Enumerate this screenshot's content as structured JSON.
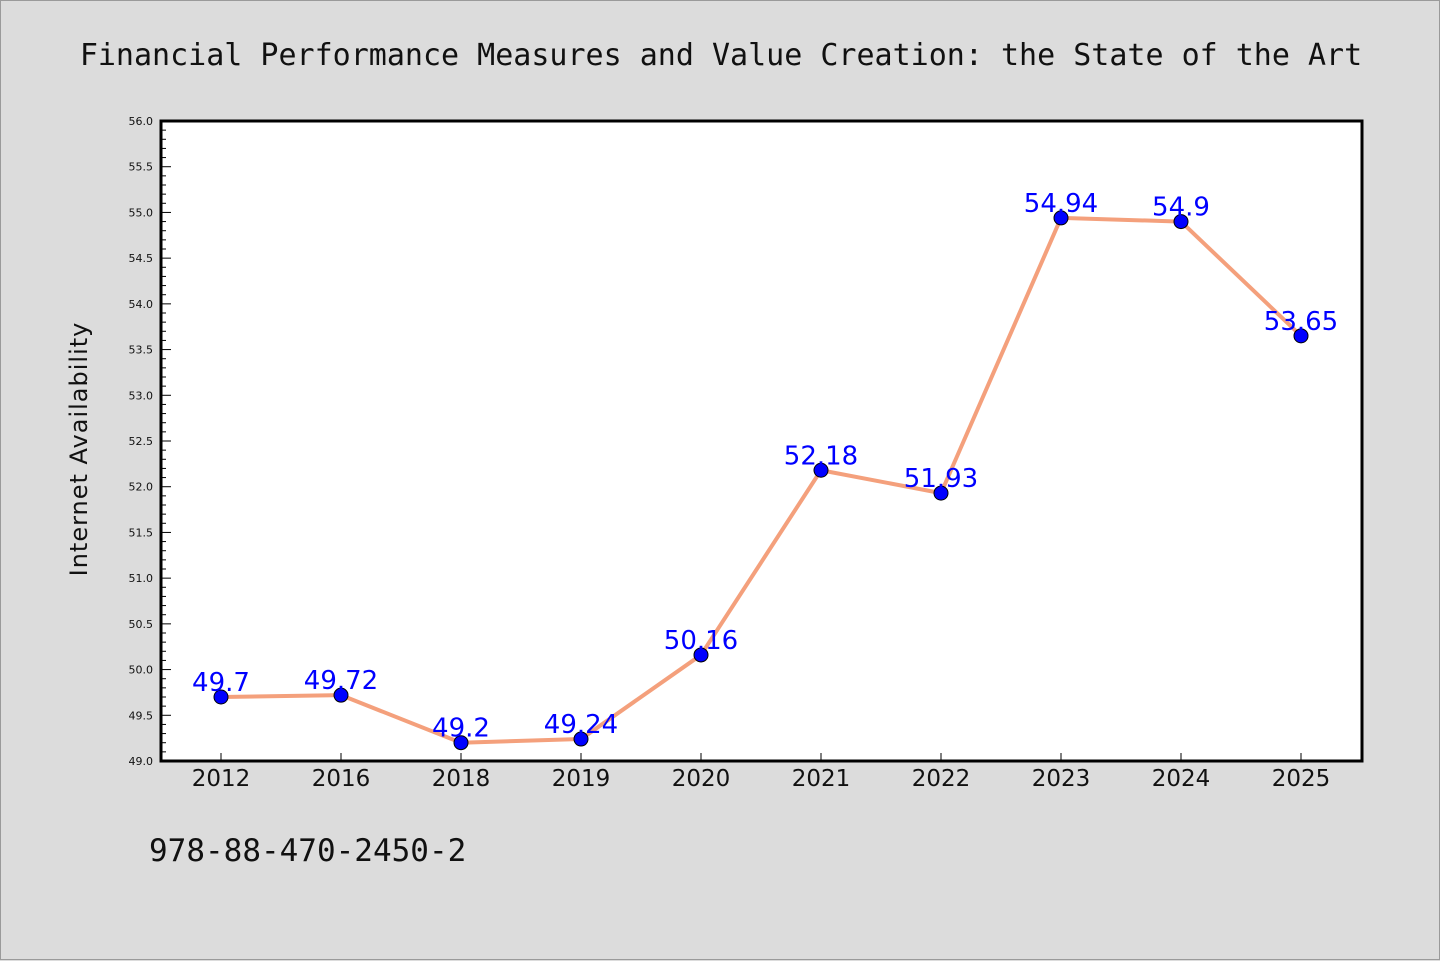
{
  "chart_data": {
    "type": "line",
    "title": "Financial Performance Measures and Value Creation: the State of the Art",
    "ylabel": "Internet Availability",
    "xlabel": "",
    "categories": [
      "2012",
      "2016",
      "2018",
      "2019",
      "2020",
      "2021",
      "2022",
      "2023",
      "2024",
      "2025"
    ],
    "series": [
      {
        "values": [
          49.7,
          49.72,
          49.2,
          49.24,
          50.16,
          52.18,
          51.93,
          54.94,
          54.9,
          53.65
        ],
        "labels": [
          "49.7",
          "49.72",
          "49.2",
          "49.24",
          "50.16",
          "52.18",
          "51.93",
          "54.94",
          "54.9",
          "53.65"
        ]
      }
    ],
    "ylim": [
      49.0,
      56.0
    ],
    "yticks": [
      "49.0",
      "49.5",
      "50.0",
      "50.5",
      "51.0",
      "51.5",
      "52.0",
      "52.5",
      "53.0",
      "53.5",
      "54.0",
      "54.5",
      "55.0",
      "55.5",
      "56.0"
    ],
    "grid": false,
    "colors": {
      "line": "#f4a07c",
      "marker": "#0000ff",
      "label": "#0000ff",
      "background": "#dcdcdc",
      "plot_background": "#ffffff"
    }
  },
  "footer_text": "978-88-470-2450-2"
}
